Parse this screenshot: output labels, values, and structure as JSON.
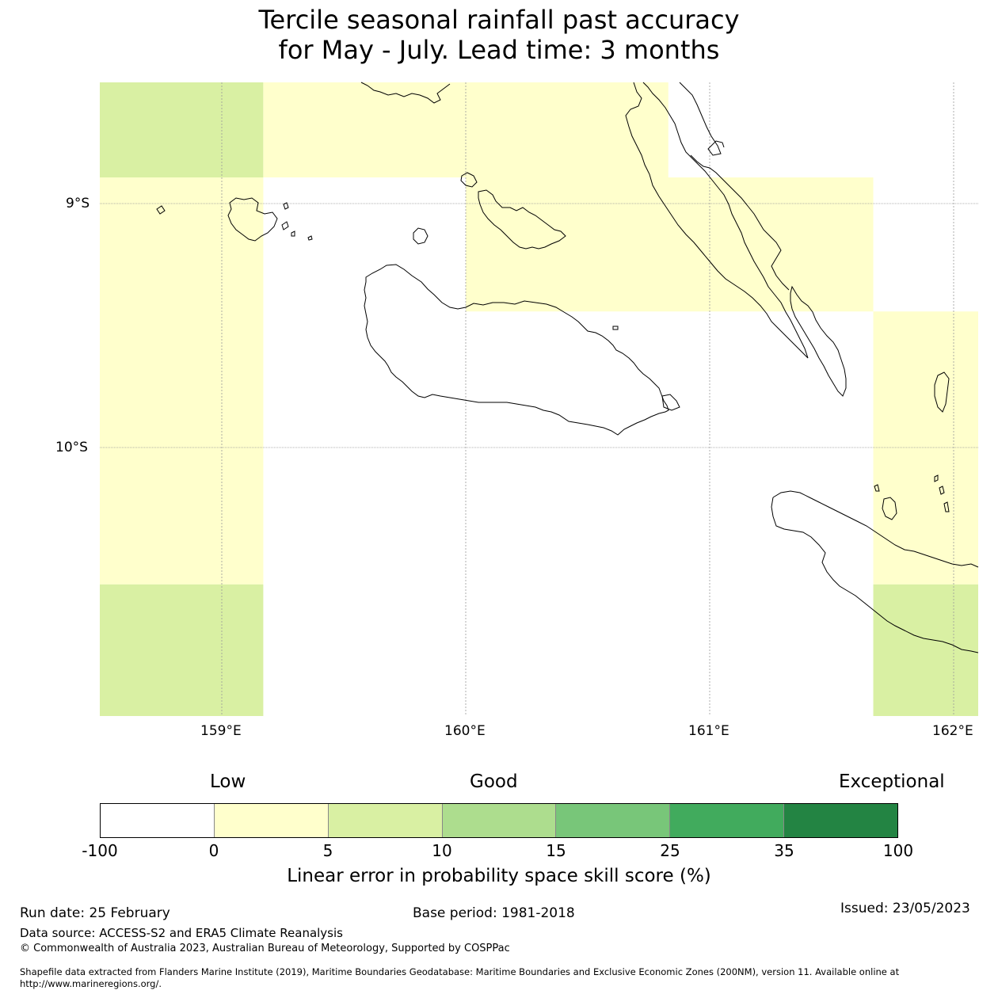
{
  "title": {
    "line1": "Tercile seasonal rainfall past accuracy",
    "line2": "for May - July. Lead time: 3 months"
  },
  "map": {
    "lat_ticks": [
      "9°S",
      "10°S"
    ],
    "lon_ticks": [
      "159°E",
      "160°E",
      "161°E",
      "162°E"
    ],
    "extent": {
      "lon_min": 158.5,
      "lon_max": 162.1,
      "lat_min": -11.1,
      "lat_max": -8.5
    },
    "cells": [
      {
        "lon0": 158.5,
        "lon1": 159.17,
        "lat0": -8.5,
        "lat1": -8.89,
        "category": "5-10"
      },
      {
        "lon0": 159.17,
        "lon1": 160.83,
        "lat0": -8.5,
        "lat1": -8.89,
        "category": "0-5"
      },
      {
        "lon0": 158.5,
        "lon1": 159.17,
        "lat0": -8.89,
        "lat1": -10.56,
        "category": "0-5"
      },
      {
        "lon0": 160.0,
        "lon1": 161.67,
        "lat0": -8.89,
        "lat1": -9.44,
        "category": "0-5"
      },
      {
        "lon0": 161.67,
        "lon1": 162.1,
        "lat0": -9.44,
        "lat1": -10.56,
        "category": "0-5"
      },
      {
        "lon0": 158.5,
        "lon1": 159.17,
        "lat0": -10.56,
        "lat1": -11.1,
        "category": "5-10"
      },
      {
        "lon0": 161.67,
        "lon1": 162.1,
        "lat0": -10.56,
        "lat1": -11.1,
        "category": "5-10"
      }
    ]
  },
  "colorbar": {
    "category_labels": {
      "low": "Low",
      "good": "Good",
      "exceptional": "Exceptional"
    },
    "ticks": [
      "-100",
      "0",
      "5",
      "10",
      "15",
      "25",
      "35",
      "100"
    ],
    "colors": [
      "#ffffff",
      "#ffffcc",
      "#d9f0a3",
      "#addd8e",
      "#78c679",
      "#41ab5d",
      "#238443"
    ],
    "label": "Linear error in probability space skill score (%)"
  },
  "footer": {
    "run_date": "Run date: 25 February",
    "base_period": "Base period: 1981-2018",
    "issued": "Issued: 23/05/2023",
    "data_source": "Data source: ACCESS-S2 and ERA5 Climate Reanalysis",
    "copyright": "© Commonwealth of Australia 2023, Australian Bureau of Meteorology, Supported by COSPPac",
    "shapefile": "Shapefile data extracted from Flanders Marine Institute (2019), Maritime Boundaries Geodatabase: Maritime Boundaries and Exclusive Economic Zones (200NM), version 11. Available online at http://www.marineregions.org/."
  }
}
